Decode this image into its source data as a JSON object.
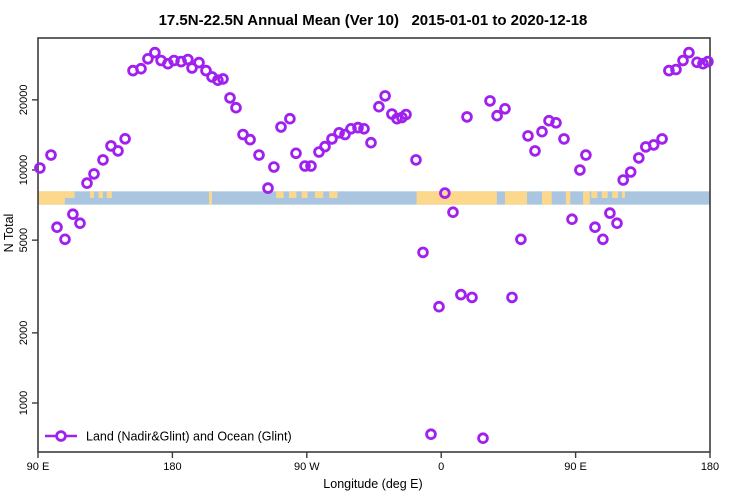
{
  "title": "17.5N-22.5N Annual Mean (Ver 10)   2015-01-01 to 2020-12-18",
  "legend": {
    "label": "Land (Nadir&Glint) and Ocean (Glint)"
  },
  "colors": {
    "point": "#A020F0",
    "ocean": "#A9C5DF",
    "land": "#FBD88C",
    "frame": "#3c3c3c",
    "text": "#000000"
  },
  "chart_data": {
    "type": "scatter",
    "title": "17.5N-22.5N Annual Mean (Ver 10)   2015-01-01 to 2020-12-18",
    "xlabel": "Longitude (deg E)",
    "ylabel": "N Total",
    "x_axis": {
      "range": [
        90,
        540
      ],
      "ticks": [
        {
          "lon": 90,
          "label": "90 E"
        },
        {
          "lon": 180,
          "label": "180"
        },
        {
          "lon": 270,
          "label": "90 W"
        },
        {
          "lon": 360,
          "label": "0"
        },
        {
          "lon": 450,
          "label": "90 E"
        },
        {
          "lon": 540,
          "label": "180"
        }
      ]
    },
    "y_axis": {
      "scale": "log",
      "range": [
        600,
        37000
      ],
      "ticks": [
        1000,
        2000,
        5000,
        10000,
        20000
      ]
    },
    "legend_entries": [
      "Land (Nadir&Glint) and Ocean (Glint)"
    ],
    "series": [
      {
        "name": "Land (Nadir&Glint) and Ocean (Glint)",
        "marker": "open-circle",
        "points": [
          [
            91.3,
            10200
          ],
          [
            98.7,
            11600
          ],
          [
            102.7,
            5680
          ],
          [
            108.1,
            5040
          ],
          [
            113.4,
            6460
          ],
          [
            118.1,
            5910
          ],
          [
            122.8,
            8790
          ],
          [
            127.5,
            9620
          ],
          [
            133.5,
            11050
          ],
          [
            138.9,
            12690
          ],
          [
            143.6,
            12080
          ],
          [
            148.3,
            13610
          ],
          [
            153.6,
            26700
          ],
          [
            159.0,
            27200
          ],
          [
            163.6,
            30000
          ],
          [
            168.3,
            31900
          ],
          [
            172.4,
            29500
          ],
          [
            177.0,
            28600
          ],
          [
            181.1,
            29500
          ],
          [
            185.8,
            29200
          ],
          [
            190.4,
            29800
          ],
          [
            193.1,
            27400
          ],
          [
            197.8,
            28900
          ],
          [
            202.5,
            26700
          ],
          [
            206.5,
            25100
          ],
          [
            210.5,
            24300
          ],
          [
            213.9,
            24600
          ],
          [
            218.6,
            20400
          ],
          [
            222.6,
            18500
          ],
          [
            227.3,
            14200
          ],
          [
            232.0,
            13500
          ],
          [
            238.0,
            11600
          ],
          [
            244.0,
            8360
          ],
          [
            248.0,
            10300
          ],
          [
            252.7,
            15300
          ],
          [
            258.7,
            16600
          ],
          [
            262.8,
            11800
          ],
          [
            268.8,
            10400
          ],
          [
            272.8,
            10400
          ],
          [
            278.2,
            11950
          ],
          [
            282.2,
            12600
          ],
          [
            286.9,
            13600
          ],
          [
            291.6,
            14450
          ],
          [
            295.6,
            14200
          ],
          [
            299.6,
            15030
          ],
          [
            304.3,
            15200
          ],
          [
            308.3,
            15030
          ],
          [
            313.0,
            13100
          ],
          [
            318.3,
            18700
          ],
          [
            322.4,
            20800
          ],
          [
            327.0,
            17400
          ],
          [
            330.4,
            16600
          ],
          [
            333.7,
            16800
          ],
          [
            336.4,
            17300
          ],
          [
            343.1,
            11050
          ],
          [
            347.8,
            4430
          ],
          [
            353.2,
            735
          ],
          [
            358.5,
            2590
          ],
          [
            362.5,
            7960
          ],
          [
            367.9,
            6590
          ],
          [
            373.2,
            2920
          ],
          [
            377.3,
            16900
          ],
          [
            380.6,
            2840
          ],
          [
            388.0,
            706
          ],
          [
            392.7,
            19800
          ],
          [
            397.4,
            17100
          ],
          [
            402.7,
            18300
          ],
          [
            407.4,
            2840
          ],
          [
            413.4,
            5040
          ],
          [
            418.1,
            14010
          ],
          [
            422.8,
            12080
          ],
          [
            427.5,
            14600
          ],
          [
            432.2,
            16270
          ],
          [
            436.9,
            15950
          ],
          [
            442.2,
            13600
          ],
          [
            447.6,
            6150
          ],
          [
            452.9,
            10000
          ],
          [
            456.9,
            11600
          ],
          [
            463.0,
            5680
          ],
          [
            468.3,
            5040
          ],
          [
            473.0,
            6530
          ],
          [
            477.7,
            5910
          ],
          [
            481.9,
            9060
          ],
          [
            486.9,
            9800
          ],
          [
            492.3,
            11270
          ],
          [
            497.0,
            12570
          ],
          [
            502.3,
            12820
          ],
          [
            507.9,
            13600
          ],
          [
            512.5,
            26700
          ],
          [
            517.2,
            27000
          ],
          [
            521.9,
            29500
          ],
          [
            525.9,
            31900
          ],
          [
            531.3,
            29000
          ],
          [
            535.3,
            28600
          ],
          [
            538.6,
            29200
          ]
        ]
      }
    ],
    "surface_band": {
      "value_range": [
        7100,
        8100
      ],
      "base": "ocean",
      "land_segments": [
        {
          "from": 90.0,
          "to": 108.0
        },
        {
          "from": 108.0,
          "to": 114.5,
          "partial": true
        },
        {
          "from": 124.8,
          "to": 127.5,
          "partial": true
        },
        {
          "from": 130.5,
          "to": 133.5,
          "partial": true
        },
        {
          "from": 136.0,
          "to": 139.5,
          "partial": true
        },
        {
          "from": 204.5,
          "to": 206.5
        },
        {
          "from": 249.5,
          "to": 254.5,
          "partial": true
        },
        {
          "from": 258.0,
          "to": 263.0,
          "partial": true
        },
        {
          "from": 266.5,
          "to": 270.5,
          "partial": true
        },
        {
          "from": 275.5,
          "to": 281.0,
          "partial": true
        },
        {
          "from": 285.0,
          "to": 290.5,
          "partial": true
        },
        {
          "from": 343.5,
          "to": 397.3
        },
        {
          "from": 402.7,
          "to": 417.5
        },
        {
          "from": 427.5,
          "to": 434.0
        },
        {
          "from": 443.5,
          "to": 446.5
        },
        {
          "from": 455.0,
          "to": 459.5
        },
        {
          "from": 460.5,
          "to": 464.5,
          "partial": true
        },
        {
          "from": 467.5,
          "to": 471.5,
          "partial": true
        },
        {
          "from": 474.5,
          "to": 478.5,
          "partial": true
        },
        {
          "from": 481.0,
          "to": 483.0,
          "partial": true
        }
      ]
    }
  }
}
